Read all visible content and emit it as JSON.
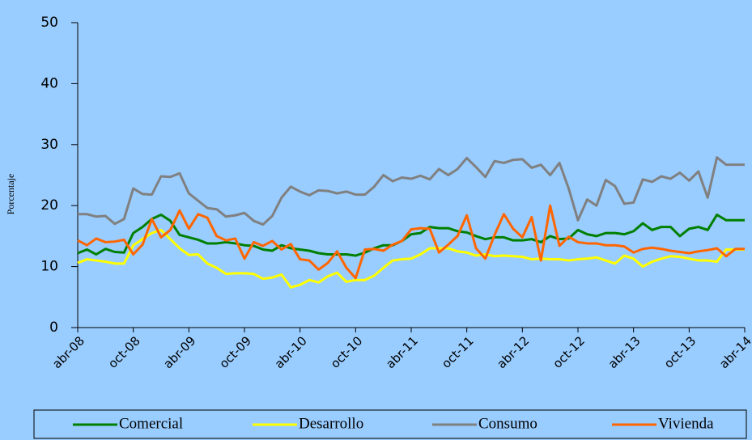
{
  "chart_data": {
    "type": "line",
    "y_label": "Porcentaje",
    "categories": [
      "abr-08",
      null,
      null,
      null,
      null,
      null,
      "oct-08",
      null,
      null,
      null,
      null,
      null,
      "abr-09",
      null,
      null,
      null,
      null,
      null,
      "oct-09",
      null,
      null,
      null,
      null,
      null,
      "abr-10",
      null,
      null,
      null,
      null,
      null,
      "oct-10",
      null,
      null,
      null,
      null,
      null,
      "abr-11",
      null,
      null,
      null,
      null,
      null,
      "oct-11",
      null,
      null,
      null,
      null,
      null,
      "abr-12",
      null,
      null,
      null,
      null,
      null,
      "oct-12",
      null,
      null,
      null,
      null,
      null,
      "abr-13",
      null,
      null,
      null,
      null,
      null,
      "oct-13",
      null,
      null,
      null,
      null,
      null,
      "abr-14"
    ],
    "series": [
      {
        "name": "Comercial",
        "color": "#008000",
        "values": [
          12.2,
          12.8,
          12.0,
          12.9,
          12.4,
          12.3,
          15.5,
          16.5,
          17.8,
          18.5,
          17.5,
          15.2,
          14.8,
          14.4,
          13.8,
          13.8,
          14.0,
          13.8,
          13.5,
          13.4,
          12.8,
          12.6,
          13.5,
          13.0,
          12.8,
          12.6,
          12.2,
          12.0,
          12.0,
          12.0,
          11.8,
          12.3,
          13.0,
          13.5,
          13.5,
          14.2,
          15.3,
          15.5,
          16.5,
          16.3,
          16.3,
          15.8,
          15.6,
          15.0,
          14.5,
          14.8,
          14.8,
          14.3,
          14.3,
          14.5,
          14.0,
          15.0,
          14.5,
          14.6,
          16.0,
          15.3,
          15.0,
          15.5,
          15.5,
          15.3,
          15.8,
          17.1,
          16.0,
          16.5,
          16.5,
          15.0,
          16.2,
          16.5,
          16.0,
          18.5,
          17.6,
          17.6,
          17.6
        ]
      },
      {
        "name": "Desarrollo",
        "color": "#ffff00",
        "values": [
          10.6,
          11.2,
          11.0,
          10.8,
          10.5,
          10.5,
          13.5,
          14.5,
          15.5,
          16.0,
          14.5,
          13.0,
          11.9,
          12.0,
          10.5,
          9.8,
          8.8,
          8.9,
          8.9,
          8.8,
          8.0,
          8.2,
          8.7,
          6.6,
          7.0,
          7.8,
          7.4,
          8.4,
          9.0,
          7.5,
          7.8,
          7.8,
          8.5,
          9.8,
          11.0,
          11.2,
          11.3,
          12.0,
          13.0,
          13.0,
          13.0,
          12.5,
          12.3,
          11.8,
          12.0,
          11.7,
          11.8,
          11.7,
          11.6,
          11.2,
          11.3,
          11.2,
          11.2,
          11.0,
          11.2,
          11.3,
          11.5,
          11.0,
          10.5,
          11.8,
          11.3,
          10.0,
          10.8,
          11.3,
          11.7,
          11.6,
          11.3,
          11.0,
          11.0,
          10.8,
          12.8,
          12.8,
          12.8
        ]
      },
      {
        "name": "Consumo",
        "color": "#808080",
        "values": [
          18.6,
          18.6,
          18.2,
          18.3,
          17.0,
          17.8,
          22.8,
          21.9,
          21.8,
          24.8,
          24.7,
          25.3,
          22.0,
          20.8,
          19.6,
          19.4,
          18.2,
          18.4,
          18.8,
          17.5,
          16.9,
          18.3,
          21.3,
          23.1,
          22.3,
          21.7,
          22.5,
          22.4,
          22.0,
          22.3,
          21.8,
          21.8,
          23.1,
          25.0,
          24.0,
          24.6,
          24.4,
          24.9,
          24.3,
          26.0,
          25.0,
          26.0,
          27.8,
          26.3,
          24.7,
          27.3,
          27.0,
          27.5,
          27.6,
          26.2,
          26.7,
          25.0,
          27.0,
          22.8,
          17.6,
          21.0,
          20.0,
          24.2,
          23.2,
          20.3,
          20.5,
          24.3,
          23.9,
          24.8,
          24.4,
          25.4,
          24.1,
          25.6,
          21.3,
          27.9,
          26.7,
          26.7,
          26.7
        ]
      },
      {
        "name": "Vivienda",
        "color": "#ff6600",
        "values": [
          14.3,
          13.5,
          14.6,
          14.0,
          14.1,
          14.4,
          12.0,
          13.6,
          17.8,
          14.8,
          16.0,
          19.2,
          16.2,
          18.6,
          18.0,
          15.0,
          14.3,
          14.6,
          11.3,
          14.0,
          13.4,
          14.2,
          12.8,
          13.7,
          11.2,
          11.0,
          9.5,
          10.6,
          12.5,
          9.8,
          8.1,
          12.8,
          12.9,
          12.6,
          13.6,
          14.2,
          16.1,
          16.3,
          16.2,
          12.3,
          13.6,
          15.0,
          18.4,
          13.0,
          11.3,
          15.2,
          18.6,
          16.2,
          14.8,
          18.1,
          11.0,
          20.0,
          13.4,
          14.9,
          14.0,
          13.8,
          13.8,
          13.5,
          13.5,
          13.3,
          12.3,
          12.9,
          13.1,
          12.9,
          12.6,
          12.4,
          12.2,
          12.5,
          12.7,
          13.0,
          11.7,
          12.9,
          12.9
        ]
      }
    ],
    "ylim": [
      0,
      50
    ],
    "yticks": [
      0,
      10,
      20,
      30,
      40,
      50
    ],
    "grid": false,
    "legend": "bottom"
  }
}
